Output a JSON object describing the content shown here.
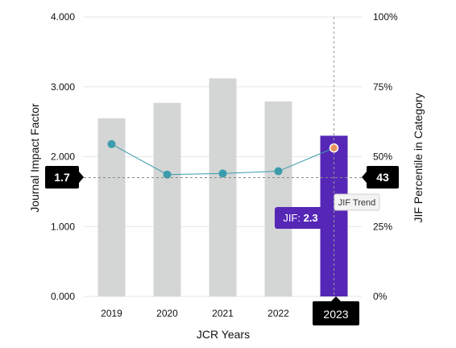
{
  "chart_data": {
    "type": "bar",
    "categories": [
      "2019",
      "2020",
      "2021",
      "2022",
      "2023"
    ],
    "values": [
      2.55,
      2.77,
      3.12,
      2.79,
      2.3
    ],
    "highlight_index": 4,
    "series": [
      {
        "name": "JIF",
        "type": "bar",
        "axis": "left",
        "values": [
          2.55,
          2.77,
          3.12,
          2.79,
          2.3
        ]
      },
      {
        "name": "JIF Trend",
        "type": "line",
        "axis": "right",
        "values": [
          54.5,
          43.6,
          44.0,
          44.8,
          53.1
        ]
      }
    ],
    "left_axis": {
      "label": "Journal Impact Factor",
      "ticks": [
        "4.000",
        "3.000",
        "2.000",
        "1.000",
        "0.000"
      ],
      "range": [
        0,
        4
      ]
    },
    "right_axis": {
      "label": "JIF Percentile in Category",
      "ticks": [
        "100%",
        "75%",
        "50%",
        "25%",
        "0%"
      ],
      "range": [
        0,
        100
      ]
    },
    "xlabel": "JCR Years",
    "reference": {
      "left_value": 1.7,
      "left_label": "1.7",
      "right_label": "43"
    },
    "tooltip": {
      "prefix": "JIF: ",
      "value": "2.3",
      "trend_label": "JIF Trend"
    },
    "selected_year": "2023",
    "colors": {
      "bar": "#d4d5d5",
      "bar_highlight": "#5627b6",
      "line": "#3b9cab",
      "point": "#3b9cab",
      "point_highlight": "#f2915b",
      "grid": "#e6e6e6",
      "label_bg": "#000000"
    },
    "grid": true
  }
}
